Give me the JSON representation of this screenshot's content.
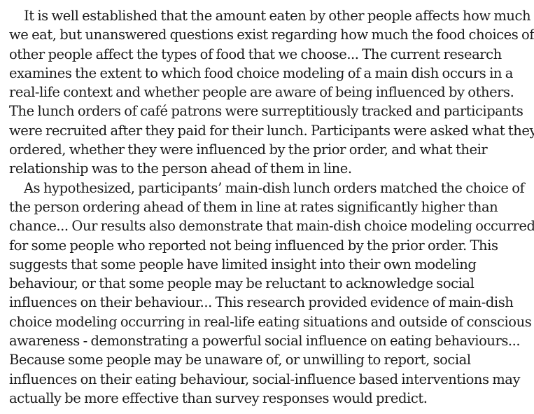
{
  "paragraphs": [
    {
      "lines": [
        "It is well established that the amount eaten by other people affects how much",
        "we eat, but unanswered questions exist regarding how much the food choices of",
        "other people affect the types of food that we choose... The current research",
        "examines the extent to which food choice modeling of a main dish occurs in a",
        "real-life context and whether people are aware of being influenced by others.",
        "The lunch orders of café patrons were surreptitiously tracked and participants",
        "were recruited after they paid for their lunch. Participants were asked what they",
        "ordered, whether they were influenced by the prior order, and what their",
        "relationship was to the person ahead of them in line."
      ]
    },
    {
      "lines": [
        "As hypothesized,  participants’ main-dish lunch orders matched the choice of",
        "the person ordering ahead of them in line at rates significantly higher than",
        "chance... Our results also demonstrate that main-dish choice modeling occurred",
        "for some people who reported not being influenced by the prior order. This",
        "suggests that some people have limited insight into their own modeling",
        "behaviour, or that some people may be reluctant to acknowledge social",
        "influences on their behaviour... This research provided evidence of main-dish",
        "choice modeling occurring in real-life eating situations and outside of conscious",
        "awareness - demonstrating a powerful social influence on eating behaviours...",
        "Because some people may be unaware of, or unwilling to report, social",
        "influences on their eating behaviour, social-influence based interventions  may",
        "actually be more effective than survey responses would predict."
      ]
    }
  ]
}
